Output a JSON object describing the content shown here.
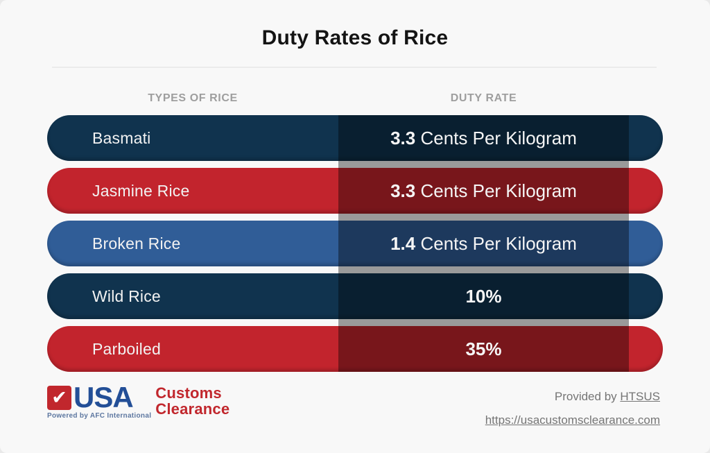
{
  "title": "Duty Rates of Rice",
  "table": {
    "col1_header": "TYPES OF RICE",
    "col2_header": "DUTY RATE",
    "rows": [
      {
        "type": "Basmati",
        "rate_value": "3.3",
        "rate_unit": " Cents Per Kilogram",
        "color": "#10334e"
      },
      {
        "type": "Jasmine Rice",
        "rate_value": "3.3",
        "rate_unit": " Cents Per Kilogram",
        "color": "#c2242d"
      },
      {
        "type": "Broken Rice",
        "rate_value": "1.4",
        "rate_unit": " Cents Per Kilogram",
        "color": "#305d97"
      },
      {
        "type": "Wild Rice",
        "rate_value": "10%",
        "rate_unit": "",
        "color": "#10334e"
      },
      {
        "type": "Parboiled",
        "rate_value": "35%",
        "rate_unit": "",
        "color": "#c2242d"
      }
    ],
    "overlay_color": "rgba(0,0,0,0.38)"
  },
  "chart_data": {
    "type": "table",
    "title": "Duty Rates of Rice",
    "columns": [
      "TYPES OF RICE",
      "DUTY RATE"
    ],
    "rows": [
      [
        "Basmati",
        "3.3 Cents Per Kilogram"
      ],
      [
        "Jasmine Rice",
        "3.3 Cents Per Kilogram"
      ],
      [
        "Broken Rice",
        "1.4 Cents Per Kilogram"
      ],
      [
        "Wild Rice",
        "10%"
      ],
      [
        "Parboiled",
        "35%"
      ]
    ]
  },
  "footer": {
    "logo": {
      "check_icon": "✔",
      "usa": "USA",
      "customs": "Customs",
      "clearance": "Clearance",
      "powered": "Powered by AFC International",
      "blue": "#234f97",
      "red": "#c1272d",
      "powered_color": "#5d77a0"
    },
    "provided_prefix": "Provided by ",
    "provided_link": "HTSUS",
    "url": "https://usacustomsclearance.com"
  }
}
